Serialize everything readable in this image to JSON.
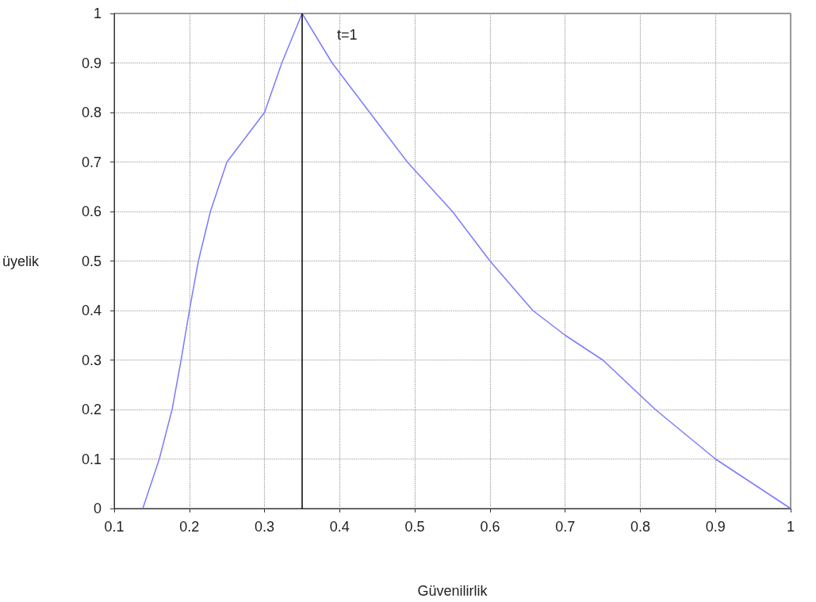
{
  "chart_data": {
    "type": "line",
    "xlabel": "Güvenilirlik",
    "ylabel": "üyelik",
    "x": [
      0.138,
      0.16,
      0.177,
      0.189,
      0.2,
      0.212,
      0.228,
      0.25,
      0.3,
      0.323,
      0.35,
      0.39,
      0.44,
      0.49,
      0.55,
      0.6,
      0.657,
      0.7,
      0.75,
      0.82,
      0.9,
      1.0
    ],
    "series": [
      {
        "color": "#7b7bff",
        "values": [
          0,
          0.1,
          0.2,
          0.3,
          0.4,
          0.5,
          0.6,
          0.7,
          0.8,
          0.9,
          1,
          0.9,
          0.8,
          0.7,
          0.6,
          0.5,
          0.4,
          0.35,
          0.3,
          0.2,
          0.1,
          0
        ]
      }
    ],
    "ref_lines": [
      {
        "axis": "x",
        "value": 0.35,
        "color": "#000000"
      }
    ],
    "annotations": [
      {
        "text": "t=1",
        "x": 0.35,
        "y": 1
      }
    ],
    "xlim": [
      0.1,
      1
    ],
    "xticks": [
      0.1,
      0.2,
      0.3,
      0.4,
      0.5,
      0.6,
      0.7,
      0.8,
      0.9,
      1
    ],
    "ylim": [
      0,
      1
    ],
    "yticks": [
      0,
      0.1,
      0.2,
      0.3,
      0.4,
      0.5,
      0.6,
      0.7,
      0.8,
      0.9,
      1
    ],
    "grid": true,
    "marker": "none",
    "line_style": "solid"
  }
}
